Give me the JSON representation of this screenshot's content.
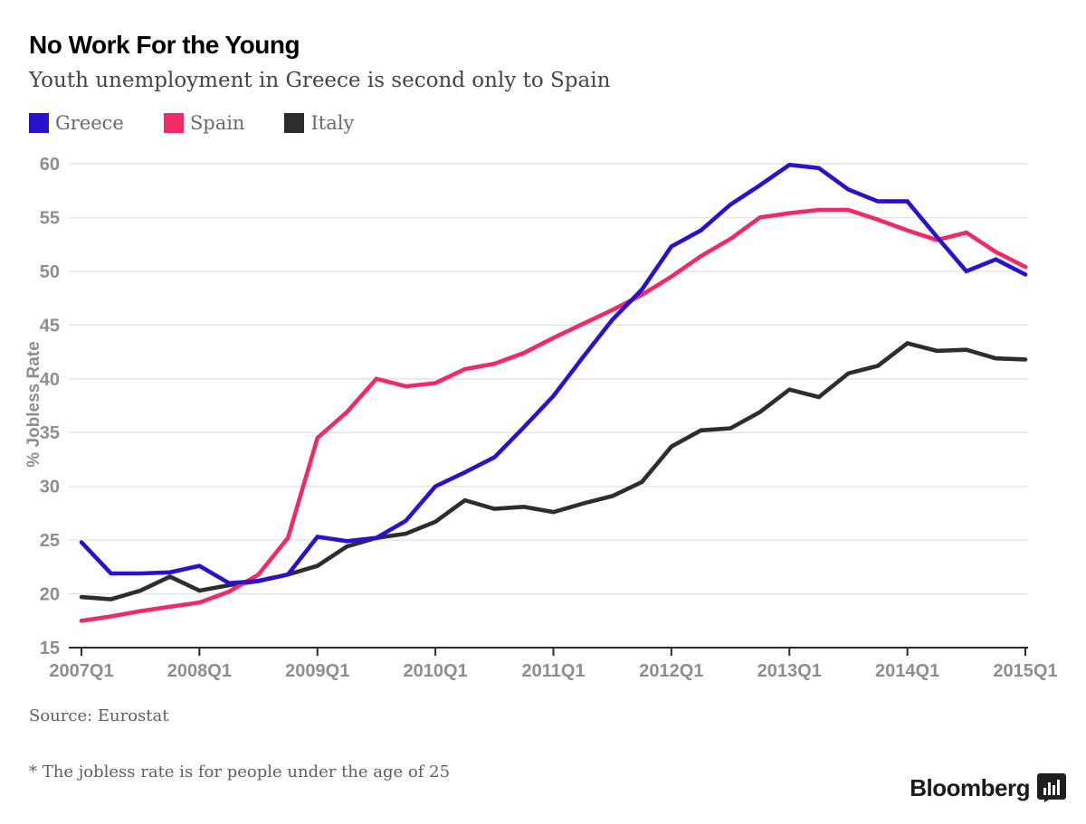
{
  "header": {
    "title": "No Work For the Young",
    "subtitle": "Youth unemployment in Greece is second only to Spain"
  },
  "footer": {
    "source": "Source: Eurostat",
    "footnote": "* The jobless rate is for people under the age of 25",
    "brand": "Bloomberg",
    "brand_logo_icon": "bar-chart-badge-icon"
  },
  "chart_data": {
    "type": "line",
    "title": "No Work For the Young",
    "subtitle": "Youth unemployment in Greece is second only to Spain",
    "xlabel": "",
    "ylabel": "% Jobless Rate",
    "ylim": [
      15,
      60
    ],
    "yticks": [
      15,
      20,
      25,
      30,
      35,
      40,
      45,
      50,
      55,
      60
    ],
    "grid": "horizontal",
    "legend_position": "top-left",
    "x_tick_labels": [
      "2007Q1",
      "2008Q1",
      "2009Q1",
      "2010Q1",
      "2011Q1",
      "2012Q1",
      "2013Q1",
      "2014Q1",
      "2015Q1"
    ],
    "x": [
      "2007Q1",
      "2007Q2",
      "2007Q3",
      "2007Q4",
      "2008Q1",
      "2008Q2",
      "2008Q3",
      "2008Q4",
      "2009Q1",
      "2009Q2",
      "2009Q3",
      "2009Q4",
      "2010Q1",
      "2010Q2",
      "2010Q3",
      "2010Q4",
      "2011Q1",
      "2011Q2",
      "2011Q3",
      "2011Q4",
      "2012Q1",
      "2012Q2",
      "2012Q3",
      "2012Q4",
      "2013Q1",
      "2013Q2",
      "2013Q3",
      "2013Q4",
      "2014Q1",
      "2014Q2",
      "2014Q3",
      "2014Q4",
      "2015Q1"
    ],
    "series": [
      {
        "name": "Greece",
        "color": "#2613cb",
        "values": [
          24.8,
          21.9,
          21.9,
          22.0,
          22.6,
          21.0,
          21.2,
          21.8,
          25.3,
          24.9,
          25.2,
          26.8,
          30.0,
          31.3,
          32.7,
          35.5,
          38.4,
          42.0,
          45.5,
          48.3,
          52.3,
          53.8,
          56.2,
          58.0,
          59.9,
          59.6,
          57.6,
          56.5,
          56.5,
          53.2,
          50.0,
          51.1,
          49.7
        ]
      },
      {
        "name": "Spain",
        "color": "#f12964",
        "values": [
          17.5,
          17.9,
          18.4,
          18.8,
          19.2,
          20.2,
          21.8,
          25.2,
          34.5,
          36.9,
          40.0,
          39.3,
          39.6,
          40.9,
          41.4,
          42.4,
          43.8,
          45.1,
          46.4,
          47.8,
          49.5,
          51.4,
          53.0,
          55.0,
          55.4,
          55.7,
          55.7,
          54.8,
          53.8,
          52.9,
          53.6,
          51.8,
          50.4
        ]
      },
      {
        "name": "Italy",
        "color": "#2d2d2d",
        "values": [
          19.7,
          19.5,
          20.3,
          21.6,
          20.3,
          20.8,
          21.2,
          21.8,
          22.6,
          24.4,
          25.2,
          25.6,
          26.7,
          28.7,
          27.9,
          28.1,
          27.6,
          28.4,
          29.1,
          30.4,
          33.7,
          35.2,
          35.4,
          36.9,
          39.0,
          38.3,
          40.5,
          41.2,
          43.3,
          42.6,
          42.7,
          41.9,
          41.8
        ]
      }
    ]
  }
}
